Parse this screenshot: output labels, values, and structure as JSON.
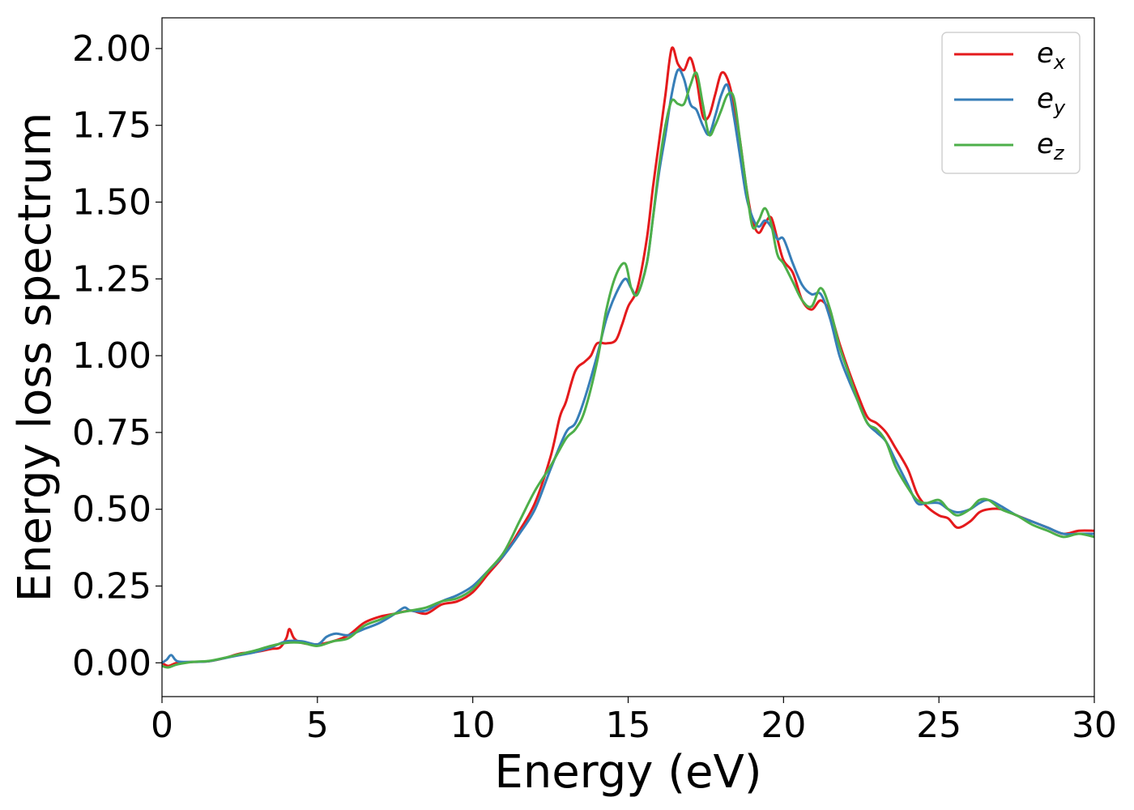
{
  "chart_data": {
    "type": "line",
    "xlabel": "Energy (eV)",
    "ylabel": "Energy loss spectrum",
    "xlim": [
      0,
      30
    ],
    "ylim": [
      -0.11,
      2.1
    ],
    "xticks": [
      0,
      5,
      10,
      15,
      20,
      25,
      30
    ],
    "xtick_labels": [
      "0",
      "5",
      "10",
      "15",
      "20",
      "25",
      "30"
    ],
    "yticks": [
      0,
      0.25,
      0.5,
      0.75,
      1.0,
      1.25,
      1.5,
      1.75,
      2.0
    ],
    "ytick_labels": [
      "0.00",
      "0.25",
      "0.50",
      "0.75",
      "1.00",
      "1.25",
      "1.50",
      "1.75",
      "2.00"
    ],
    "grid": false,
    "legend_position": "top-right",
    "series": [
      {
        "name": "e_x",
        "label_base": "e",
        "label_sub": "x",
        "color": "#e41a1c",
        "points": [
          [
            0,
            0
          ],
          [
            0.2,
            -0.01
          ],
          [
            0.5,
            0
          ],
          [
            1,
            0.003
          ],
          [
            1.5,
            0.005
          ],
          [
            2,
            0.015
          ],
          [
            2.5,
            0.03
          ],
          [
            3,
            0.035
          ],
          [
            3.5,
            0.045
          ],
          [
            3.8,
            0.05
          ],
          [
            4.0,
            0.08
          ],
          [
            4.1,
            0.11
          ],
          [
            4.25,
            0.08
          ],
          [
            4.5,
            0.065
          ],
          [
            5,
            0.06
          ],
          [
            5.5,
            0.07
          ],
          [
            6,
            0.09
          ],
          [
            6.5,
            0.13
          ],
          [
            7,
            0.15
          ],
          [
            7.5,
            0.16
          ],
          [
            8,
            0.17
          ],
          [
            8.5,
            0.16
          ],
          [
            9,
            0.19
          ],
          [
            9.5,
            0.2
          ],
          [
            10,
            0.23
          ],
          [
            10.5,
            0.29
          ],
          [
            11,
            0.35
          ],
          [
            11.5,
            0.43
          ],
          [
            12,
            0.52
          ],
          [
            12.5,
            0.67
          ],
          [
            12.8,
            0.8
          ],
          [
            13,
            0.85
          ],
          [
            13.3,
            0.95
          ],
          [
            13.6,
            0.98
          ],
          [
            13.8,
            1.0
          ],
          [
            14,
            1.04
          ],
          [
            14.3,
            1.04
          ],
          [
            14.6,
            1.05
          ],
          [
            14.8,
            1.1
          ],
          [
            15,
            1.16
          ],
          [
            15.3,
            1.22
          ],
          [
            15.6,
            1.38
          ],
          [
            15.8,
            1.55
          ],
          [
            16.0,
            1.7
          ],
          [
            16.2,
            1.85
          ],
          [
            16.4,
            2.0
          ],
          [
            16.6,
            1.95
          ],
          [
            16.8,
            1.93
          ],
          [
            17.0,
            1.97
          ],
          [
            17.2,
            1.9
          ],
          [
            17.4,
            1.78
          ],
          [
            17.6,
            1.78
          ],
          [
            17.8,
            1.85
          ],
          [
            18.0,
            1.92
          ],
          [
            18.2,
            1.9
          ],
          [
            18.4,
            1.82
          ],
          [
            18.6,
            1.7
          ],
          [
            18.8,
            1.55
          ],
          [
            19.0,
            1.44
          ],
          [
            19.2,
            1.4
          ],
          [
            19.4,
            1.43
          ],
          [
            19.6,
            1.45
          ],
          [
            19.8,
            1.38
          ],
          [
            20.0,
            1.31
          ],
          [
            20.3,
            1.27
          ],
          [
            20.6,
            1.18
          ],
          [
            20.9,
            1.15
          ],
          [
            21.2,
            1.18
          ],
          [
            21.5,
            1.14
          ],
          [
            21.8,
            1.04
          ],
          [
            22.1,
            0.95
          ],
          [
            22.4,
            0.87
          ],
          [
            22.7,
            0.8
          ],
          [
            23,
            0.78
          ],
          [
            23.3,
            0.75
          ],
          [
            23.6,
            0.7
          ],
          [
            24,
            0.63
          ],
          [
            24.3,
            0.55
          ],
          [
            24.6,
            0.51
          ],
          [
            25,
            0.48
          ],
          [
            25.3,
            0.47
          ],
          [
            25.6,
            0.44
          ],
          [
            26,
            0.46
          ],
          [
            26.3,
            0.49
          ],
          [
            26.6,
            0.5
          ],
          [
            27,
            0.5
          ],
          [
            27.5,
            0.48
          ],
          [
            28,
            0.46
          ],
          [
            28.5,
            0.44
          ],
          [
            29,
            0.42
          ],
          [
            29.5,
            0.43
          ],
          [
            30,
            0.43
          ]
        ]
      },
      {
        "name": "e_y",
        "label_base": "e",
        "label_sub": "y",
        "color": "#377eb8",
        "points": [
          [
            0,
            0
          ],
          [
            0.15,
            0.01
          ],
          [
            0.3,
            0.025
          ],
          [
            0.5,
            0.005
          ],
          [
            1,
            0.003
          ],
          [
            1.5,
            0.005
          ],
          [
            2,
            0.015
          ],
          [
            2.5,
            0.025
          ],
          [
            3,
            0.035
          ],
          [
            3.5,
            0.05
          ],
          [
            4,
            0.07
          ],
          [
            4.5,
            0.07
          ],
          [
            5,
            0.06
          ],
          [
            5.3,
            0.085
          ],
          [
            5.6,
            0.095
          ],
          [
            6,
            0.09
          ],
          [
            6.5,
            0.11
          ],
          [
            7,
            0.13
          ],
          [
            7.5,
            0.16
          ],
          [
            7.8,
            0.18
          ],
          [
            8,
            0.17
          ],
          [
            8.5,
            0.17
          ],
          [
            9,
            0.2
          ],
          [
            9.5,
            0.22
          ],
          [
            10,
            0.25
          ],
          [
            10.5,
            0.3
          ],
          [
            11,
            0.35
          ],
          [
            11.5,
            0.42
          ],
          [
            12,
            0.5
          ],
          [
            12.5,
            0.63
          ],
          [
            13,
            0.75
          ],
          [
            13.3,
            0.78
          ],
          [
            13.6,
            0.86
          ],
          [
            14,
            1.0
          ],
          [
            14.3,
            1.12
          ],
          [
            14.6,
            1.2
          ],
          [
            14.9,
            1.25
          ],
          [
            15.1,
            1.22
          ],
          [
            15.3,
            1.2
          ],
          [
            15.6,
            1.3
          ],
          [
            15.8,
            1.45
          ],
          [
            16.0,
            1.6
          ],
          [
            16.2,
            1.72
          ],
          [
            16.4,
            1.85
          ],
          [
            16.6,
            1.93
          ],
          [
            16.8,
            1.9
          ],
          [
            17.0,
            1.82
          ],
          [
            17.2,
            1.8
          ],
          [
            17.4,
            1.75
          ],
          [
            17.6,
            1.72
          ],
          [
            17.8,
            1.78
          ],
          [
            18.0,
            1.85
          ],
          [
            18.2,
            1.88
          ],
          [
            18.4,
            1.78
          ],
          [
            18.6,
            1.65
          ],
          [
            18.8,
            1.52
          ],
          [
            19.0,
            1.45
          ],
          [
            19.2,
            1.42
          ],
          [
            19.4,
            1.44
          ],
          [
            19.6,
            1.42
          ],
          [
            19.8,
            1.38
          ],
          [
            20.0,
            1.38
          ],
          [
            20.3,
            1.3
          ],
          [
            20.6,
            1.23
          ],
          [
            20.9,
            1.2
          ],
          [
            21.2,
            1.2
          ],
          [
            21.5,
            1.12
          ],
          [
            21.8,
            1.0
          ],
          [
            22.1,
            0.92
          ],
          [
            22.4,
            0.85
          ],
          [
            22.7,
            0.78
          ],
          [
            23,
            0.75
          ],
          [
            23.3,
            0.72
          ],
          [
            23.6,
            0.66
          ],
          [
            24,
            0.58
          ],
          [
            24.3,
            0.52
          ],
          [
            24.6,
            0.52
          ],
          [
            25,
            0.52
          ],
          [
            25.3,
            0.5
          ],
          [
            25.6,
            0.49
          ],
          [
            26,
            0.5
          ],
          [
            26.3,
            0.52
          ],
          [
            26.6,
            0.53
          ],
          [
            27,
            0.51
          ],
          [
            27.5,
            0.48
          ],
          [
            28,
            0.46
          ],
          [
            28.5,
            0.44
          ],
          [
            29,
            0.42
          ],
          [
            29.5,
            0.42
          ],
          [
            30,
            0.42
          ]
        ]
      },
      {
        "name": "e_z",
        "label_base": "e",
        "label_sub": "z",
        "color": "#4daf4a",
        "points": [
          [
            0,
            -0.01
          ],
          [
            0.2,
            -0.015
          ],
          [
            0.5,
            -0.005
          ],
          [
            1,
            0.003
          ],
          [
            1.5,
            0.006
          ],
          [
            2,
            0.016
          ],
          [
            2.5,
            0.028
          ],
          [
            3,
            0.04
          ],
          [
            3.5,
            0.055
          ],
          [
            4,
            0.065
          ],
          [
            4.5,
            0.065
          ],
          [
            5,
            0.055
          ],
          [
            5.5,
            0.07
          ],
          [
            6,
            0.08
          ],
          [
            6.5,
            0.12
          ],
          [
            7,
            0.14
          ],
          [
            7.5,
            0.16
          ],
          [
            8,
            0.17
          ],
          [
            8.5,
            0.18
          ],
          [
            9,
            0.2
          ],
          [
            9.5,
            0.21
          ],
          [
            10,
            0.24
          ],
          [
            10.5,
            0.3
          ],
          [
            11,
            0.36
          ],
          [
            11.5,
            0.46
          ],
          [
            12,
            0.56
          ],
          [
            12.5,
            0.64
          ],
          [
            13,
            0.73
          ],
          [
            13.3,
            0.76
          ],
          [
            13.6,
            0.82
          ],
          [
            14,
            0.98
          ],
          [
            14.3,
            1.15
          ],
          [
            14.6,
            1.26
          ],
          [
            14.9,
            1.3
          ],
          [
            15.1,
            1.22
          ],
          [
            15.3,
            1.2
          ],
          [
            15.6,
            1.3
          ],
          [
            15.8,
            1.45
          ],
          [
            16.0,
            1.62
          ],
          [
            16.2,
            1.75
          ],
          [
            16.4,
            1.83
          ],
          [
            16.6,
            1.82
          ],
          [
            16.8,
            1.82
          ],
          [
            17.0,
            1.88
          ],
          [
            17.2,
            1.92
          ],
          [
            17.4,
            1.82
          ],
          [
            17.6,
            1.72
          ],
          [
            17.8,
            1.75
          ],
          [
            18.0,
            1.8
          ],
          [
            18.2,
            1.85
          ],
          [
            18.4,
            1.84
          ],
          [
            18.6,
            1.7
          ],
          [
            18.8,
            1.55
          ],
          [
            19.0,
            1.42
          ],
          [
            19.2,
            1.44
          ],
          [
            19.4,
            1.48
          ],
          [
            19.6,
            1.43
          ],
          [
            19.8,
            1.33
          ],
          [
            20.0,
            1.3
          ],
          [
            20.3,
            1.24
          ],
          [
            20.6,
            1.18
          ],
          [
            20.9,
            1.16
          ],
          [
            21.2,
            1.22
          ],
          [
            21.5,
            1.15
          ],
          [
            21.8,
            1.03
          ],
          [
            22.1,
            0.94
          ],
          [
            22.4,
            0.85
          ],
          [
            22.7,
            0.78
          ],
          [
            23,
            0.76
          ],
          [
            23.3,
            0.72
          ],
          [
            23.6,
            0.64
          ],
          [
            24,
            0.57
          ],
          [
            24.3,
            0.53
          ],
          [
            24.6,
            0.52
          ],
          [
            25,
            0.53
          ],
          [
            25.3,
            0.5
          ],
          [
            25.6,
            0.48
          ],
          [
            26,
            0.5
          ],
          [
            26.3,
            0.53
          ],
          [
            26.6,
            0.53
          ],
          [
            27,
            0.5
          ],
          [
            27.5,
            0.48
          ],
          [
            28,
            0.45
          ],
          [
            28.5,
            0.43
          ],
          [
            29,
            0.41
          ],
          [
            29.5,
            0.42
          ],
          [
            30,
            0.41
          ]
        ]
      }
    ]
  }
}
